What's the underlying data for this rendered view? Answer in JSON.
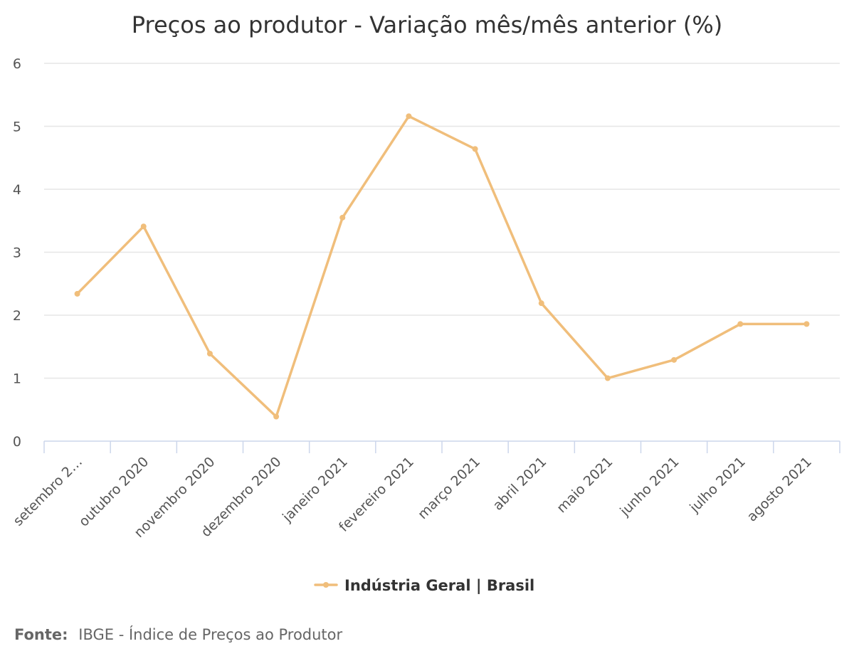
{
  "chart_data": {
    "type": "line",
    "title": "Preços ao produtor - Variação mês/mês anterior (%)",
    "categories": [
      "setembro 2…",
      "outubro 2020",
      "novembro 2020",
      "dezembro 2020",
      "janeiro 2021",
      "fevereiro 2021",
      "março 2021",
      "abril 2021",
      "maio 2021",
      "junho 2021",
      "julho 2021",
      "agosto 2021"
    ],
    "series": [
      {
        "name": "Indústria Geral | Brasil",
        "color": "#f0be7b",
        "values": [
          2.34,
          3.41,
          1.39,
          0.39,
          3.55,
          5.16,
          4.64,
          2.19,
          1.0,
          1.29,
          1.86,
          1.86
        ]
      }
    ],
    "y_ticks": [
      "0",
      "1",
      "2",
      "3",
      "4",
      "5",
      "6"
    ],
    "ylim": [
      0,
      6
    ],
    "grid": true,
    "legend_position": "bottom-center"
  },
  "source": {
    "label": "Fonte:",
    "text": "IBGE - Índice de Preços ao Produtor"
  }
}
